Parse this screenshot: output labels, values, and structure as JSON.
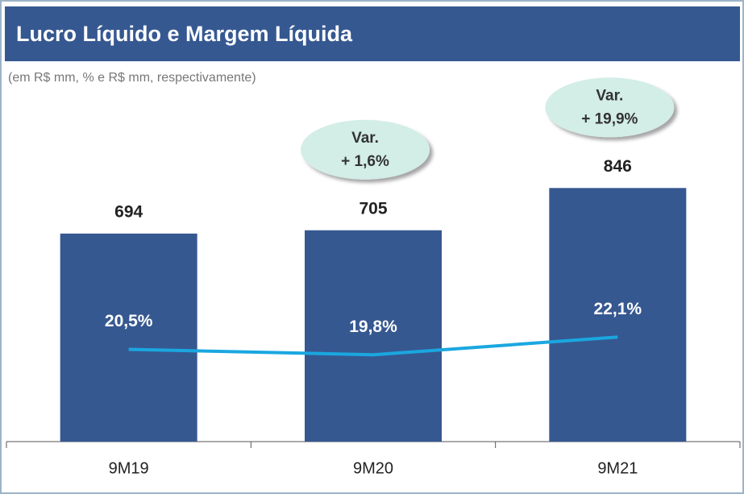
{
  "chart_data": {
    "type": "bar_line",
    "title": "Lucro Líquido e Margem Líquida",
    "subtitle": "(em R$ mm, % e R$ mm, respectivamente)",
    "categories": [
      "9M19",
      "9M20",
      "9M21"
    ],
    "series": [
      {
        "name": "Lucro Líquido",
        "type": "bar",
        "color": "#365891",
        "values": [
          694,
          705,
          846
        ]
      },
      {
        "name": "Margem Líquida",
        "type": "line",
        "axis": "y2",
        "color": "#1aa7e0",
        "values": [
          20.5,
          19.8,
          22.1
        ],
        "value_labels": [
          "20,5%",
          "19,8%",
          "22,1%"
        ]
      }
    ],
    "ylim": [
      0,
      1000
    ],
    "y2lim": [
      8.5,
      47.5
    ],
    "annotations": [
      {
        "lines": [
          "Var.",
          "+ 1,6%"
        ]
      },
      {
        "lines": [
          "Var.",
          "+ 19,9%"
        ]
      }
    ]
  }
}
